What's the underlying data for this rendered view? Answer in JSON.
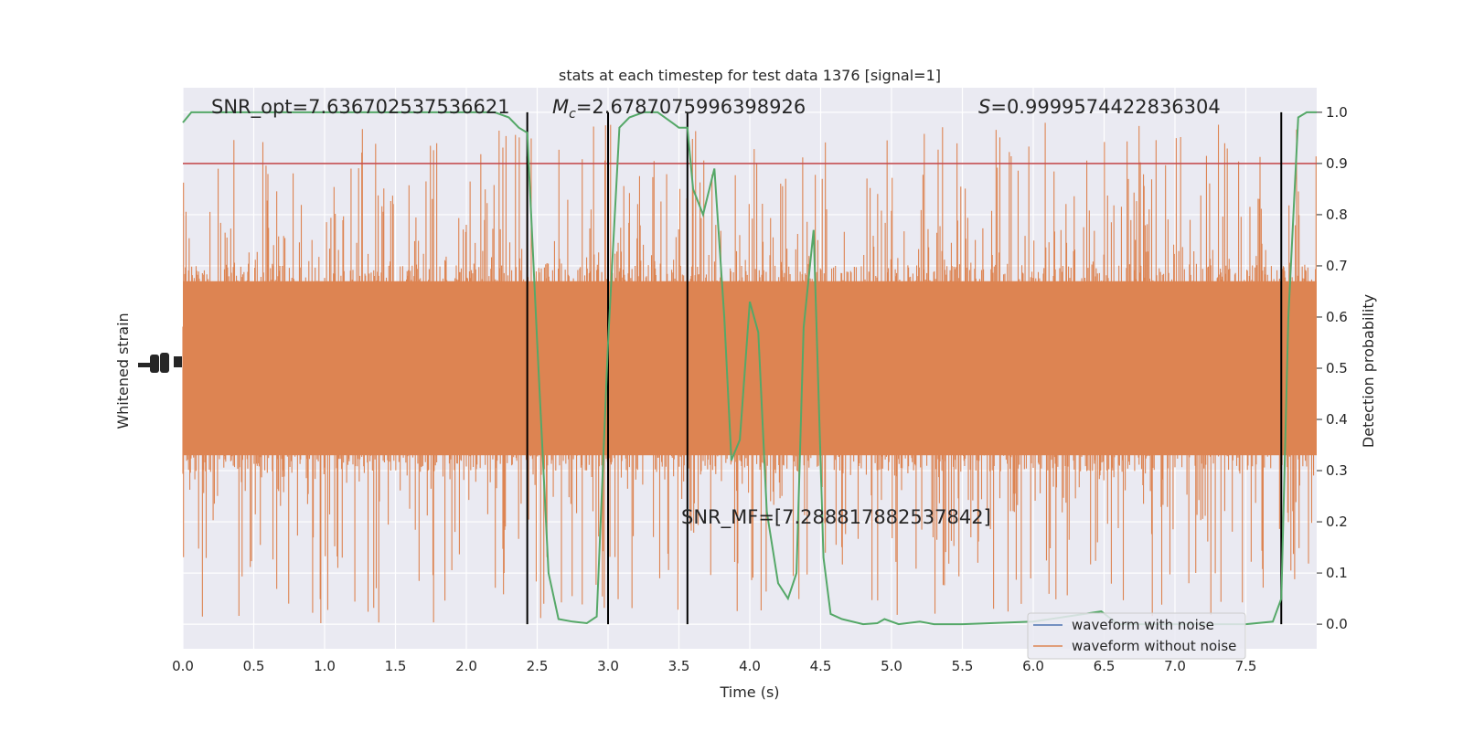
{
  "chart_data": {
    "type": "line",
    "title": "stats at each timestep for test data 1376 [signal=1]",
    "xlabel": "Time (s)",
    "ylabel_left": "Whitened strain",
    "ylabel_right": "Detection probability",
    "xlim": [
      0.0,
      8.0
    ],
    "ylim_right": [
      -0.048,
      1.048
    ],
    "x_ticks": [
      "0.0",
      "0.5",
      "1.0",
      "1.5",
      "2.0",
      "2.5",
      "3.0",
      "3.5",
      "4.0",
      "4.5",
      "5.0",
      "5.5",
      "6.0",
      "6.5",
      "7.0",
      "7.5"
    ],
    "y_ticks_right": [
      "0.0",
      "0.1",
      "0.2",
      "0.3",
      "0.4",
      "0.5",
      "0.6",
      "0.7",
      "0.8",
      "0.9",
      "1.0"
    ],
    "grid": true,
    "legend_position": "lower-right",
    "annotations": {
      "snr_opt": "SNR_opt=7.636702537536621",
      "mc_symbol": "M",
      "mc_sub": "c",
      "mc_value": "=2.6787075996398926",
      "s_symbol": "S",
      "s_value": "=0.9999574422836304",
      "snr_mf": "SNR_MF=[7.288817882537842]"
    },
    "threshold": 0.9,
    "vertical_lines": [
      2.43,
      3.0,
      3.56,
      7.75
    ],
    "series": [
      {
        "name": "waveform with noise",
        "color": "#4c72b0"
      },
      {
        "name": "waveform without noise",
        "color": "#dd8452"
      }
    ],
    "strain_band": {
      "center": 0.5,
      "dense_half_width": 0.2,
      "max_up": 0.48,
      "max_down": 0.5,
      "color": "#dd8452"
    },
    "detection_probability": {
      "color": "#55a868",
      "x": [
        0.0,
        0.06,
        0.25,
        0.5,
        1.0,
        1.5,
        2.0,
        2.2,
        2.3,
        2.37,
        2.43,
        2.5,
        2.58,
        2.65,
        2.75,
        2.85,
        2.92,
        3.0,
        3.08,
        3.15,
        3.25,
        3.35,
        3.45,
        3.5,
        3.56,
        3.6,
        3.67,
        3.75,
        3.82,
        3.87,
        3.93,
        4.0,
        4.06,
        4.12,
        4.2,
        4.27,
        4.33,
        4.38,
        4.45,
        4.52,
        4.57,
        4.65,
        4.8,
        4.9,
        4.95,
        5.05,
        5.2,
        5.3,
        5.5,
        6.0,
        6.48,
        6.55,
        6.6,
        7.0,
        7.5,
        7.69,
        7.75,
        7.8,
        7.87,
        7.93,
        8.0
      ],
      "y": [
        0.98,
        1.0,
        1.0,
        1.0,
        1.0,
        1.0,
        1.0,
        1.0,
        0.99,
        0.97,
        0.96,
        0.55,
        0.1,
        0.01,
        0.005,
        0.002,
        0.015,
        0.55,
        0.97,
        0.99,
        1.0,
        1.0,
        0.98,
        0.97,
        0.97,
        0.85,
        0.8,
        0.89,
        0.6,
        0.32,
        0.36,
        0.63,
        0.57,
        0.22,
        0.08,
        0.05,
        0.1,
        0.58,
        0.77,
        0.13,
        0.02,
        0.01,
        0.0,
        0.002,
        0.01,
        0.0,
        0.005,
        0.0,
        0.0,
        0.005,
        0.025,
        0.01,
        0.0,
        0.0,
        0.0,
        0.005,
        0.05,
        0.6,
        0.99,
        1.0,
        1.0
      ]
    }
  }
}
